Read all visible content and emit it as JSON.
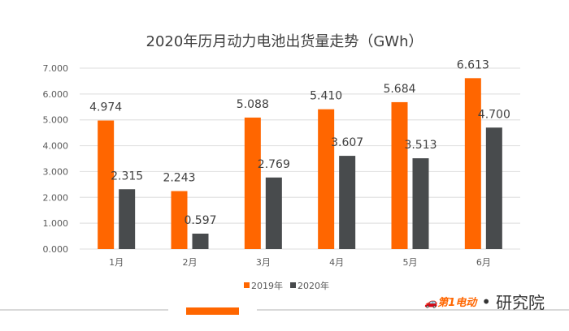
{
  "chart_data": {
    "type": "bar",
    "title": "2020年历月动力电池出货量走势（GWh）",
    "categories": [
      "1月",
      "2月",
      "3月",
      "4月",
      "5月",
      "6月"
    ],
    "series": [
      {
        "name": "2019年",
        "color": "#ff6600",
        "values": [
          4.974,
          2.243,
          5.088,
          5.41,
          5.684,
          6.613
        ],
        "labels": [
          "4.974",
          "2.243",
          "5.088",
          "5.410",
          "5.684",
          "6.613"
        ]
      },
      {
        "name": "2020年",
        "color": "#484b4d",
        "values": [
          2.315,
          0.597,
          2.769,
          3.607,
          3.513,
          4.7
        ],
        "labels": [
          "2.315",
          "0.597",
          "2.769",
          "3.607",
          "3.513",
          "4.700"
        ]
      }
    ],
    "ylim": [
      0,
      7
    ],
    "yticks": [
      "0.000",
      "1.000",
      "2.000",
      "3.000",
      "4.000",
      "5.000",
      "6.000",
      "7.000"
    ],
    "grid": true,
    "legend": "bottom"
  },
  "branding": {
    "logo_text": "第1电动",
    "institute": "研究院"
  }
}
